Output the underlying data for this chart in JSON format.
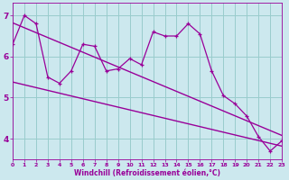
{
  "xlabel": "Windchill (Refroidissement éolien,°C)",
  "bg_color": "#cce8ee",
  "line_color": "#990099",
  "grid_color": "#99cccc",
  "hours": [
    0,
    1,
    2,
    3,
    4,
    5,
    6,
    7,
    8,
    9,
    10,
    11,
    12,
    13,
    14,
    15,
    16,
    17,
    18,
    19,
    20,
    21,
    22,
    23
  ],
  "values": [
    6.3,
    7.0,
    6.8,
    5.5,
    5.35,
    5.65,
    6.3,
    6.25,
    5.65,
    5.7,
    5.95,
    5.8,
    6.6,
    6.5,
    6.5,
    6.8,
    6.55,
    5.65,
    5.05,
    4.85,
    4.55,
    4.05,
    3.7,
    3.95
  ],
  "ylim": [
    3.5,
    7.3
  ],
  "xlim": [
    0,
    23
  ],
  "yticks": [
    4,
    5,
    6,
    7
  ],
  "xticks": [
    0,
    1,
    2,
    3,
    4,
    5,
    6,
    7,
    8,
    9,
    10,
    11,
    12,
    13,
    14,
    15,
    16,
    17,
    18,
    19,
    20,
    21,
    22,
    23
  ],
  "upper_line": [
    6.82,
    4.08
  ],
  "lower_line": [
    5.38,
    3.82
  ]
}
